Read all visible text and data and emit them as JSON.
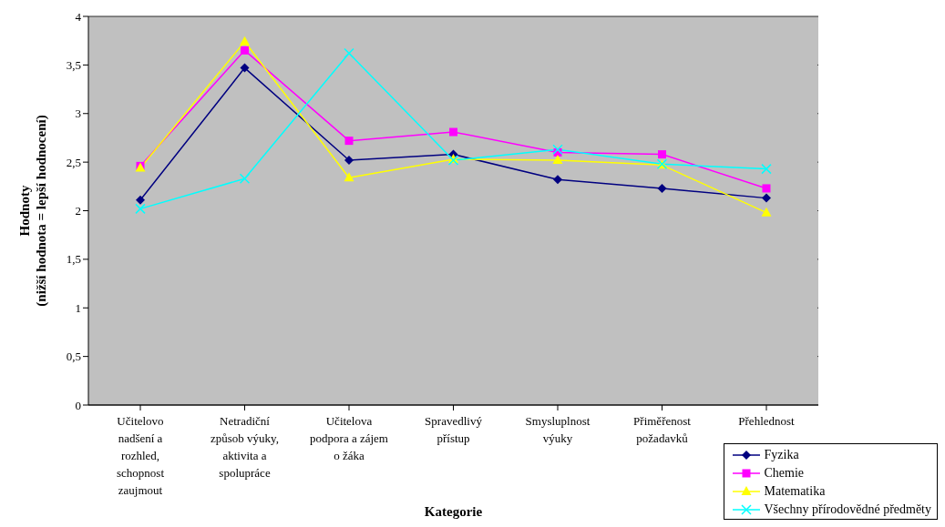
{
  "chart_data": {
    "type": "line",
    "xlabel": "Kategorie",
    "ylabel": "Hodnoty\n(nižší hodnota = lepší hodnocení)",
    "categories": [
      "Učitelovo nadšení a rozhled, schopnost zaujmout",
      "Netradiční způsob výuky, aktivita a spolupráce",
      "Učitelova podpora a zájem o žáka",
      "Spravedlivý přístup",
      "Smysluplnost výuky",
      "Přiměřenost požadavků",
      "Přehlednost"
    ],
    "series": [
      {
        "name": "Fyzika",
        "color": "#000080",
        "marker": "diamond",
        "values": [
          2.11,
          3.47,
          2.52,
          2.58,
          2.32,
          2.23,
          2.13
        ]
      },
      {
        "name": "Chemie",
        "color": "#ff00ff",
        "marker": "square",
        "values": [
          2.46,
          3.65,
          2.72,
          2.81,
          2.6,
          2.58,
          2.23
        ]
      },
      {
        "name": "Matematika",
        "color": "#ffff00",
        "marker": "triangle",
        "values": [
          2.44,
          3.74,
          2.34,
          2.53,
          2.52,
          2.47,
          1.98
        ]
      },
      {
        "name": "Všechny přírodovědné předměty",
        "color": "#00ffff",
        "marker": "cross",
        "values": [
          2.02,
          2.33,
          3.62,
          2.52,
          2.63,
          2.48,
          2.43
        ]
      }
    ],
    "ylim": [
      0,
      4
    ],
    "yticks": [
      0,
      {
        "value": 0.5,
        "label": "0,5"
      },
      1,
      {
        "value": 1.5,
        "label": "1,5"
      },
      2,
      {
        "value": 2.5,
        "label": "2,5"
      },
      3,
      {
        "value": 3.5,
        "label": "3,5"
      },
      4
    ],
    "grid": "y",
    "legend": "bottom right"
  }
}
